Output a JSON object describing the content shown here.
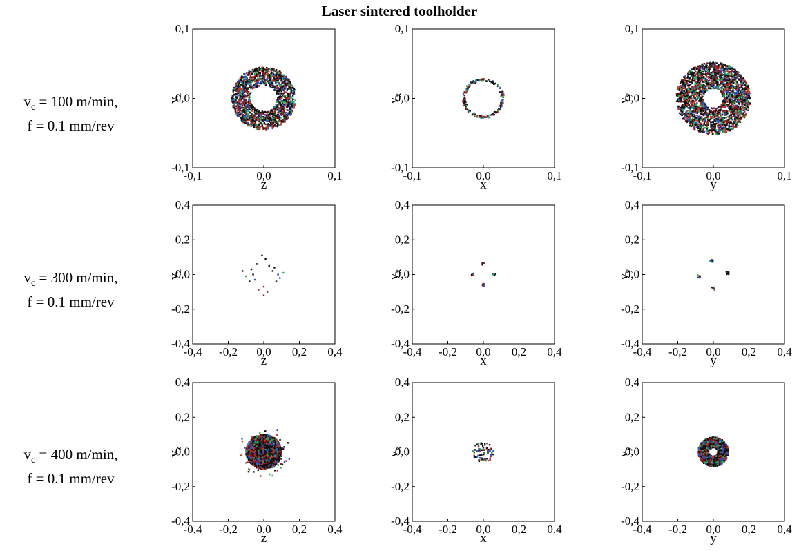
{
  "figure": {
    "title": "Laser sintered toolholder"
  },
  "rows": [
    {
      "vc_sym": "v",
      "vc_sub": "c",
      "vc_text": " = 100 m/min,",
      "feed": "f = 0.1 mm/rev"
    },
    {
      "vc_sym": "v",
      "vc_sub": "c",
      "vc_text": " = 300 m/min,",
      "feed": "f = 0.1 mm/rev"
    },
    {
      "vc_sym": "v",
      "vc_sub": "c",
      "vc_text": " = 400 m/min,",
      "feed": "f = 0.1 mm/rev"
    }
  ],
  "colors": {
    "points": [
      "#111111",
      "#111111",
      "#111111",
      "#c0392b",
      "#27ae60",
      "#2e50c8",
      "#8b1a1a"
    ],
    "frame": "#000000"
  },
  "chart_data": [
    {
      "type": "scatter",
      "row": 0,
      "col": 0,
      "xlabel": "z",
      "ylabel_sym": "v",
      "ylabel_sub": "z",
      "xlim": [
        -0.1,
        0.1
      ],
      "ylim": [
        -0.1,
        0.1
      ],
      "xticks": [
        "-0,1",
        "0,0",
        "0,1"
      ],
      "yticks": [
        "-0,1",
        "0,0",
        "0,1"
      ],
      "distribution": {
        "shape": "ring",
        "center": [
          0.0,
          0.0
        ],
        "r_inner": 0.019,
        "r_outer": 0.045,
        "n": 1600
      }
    },
    {
      "type": "scatter",
      "row": 0,
      "col": 1,
      "xlabel": "x",
      "ylabel_sym": "v",
      "ylabel_sub": "x",
      "xlim": [
        -0.1,
        0.1
      ],
      "ylim": [
        -0.1,
        0.1
      ],
      "xticks": [
        "-0,1",
        "0,0",
        "0,1"
      ],
      "yticks": [
        "-0,1",
        "0,0",
        "0,1"
      ],
      "distribution": {
        "shape": "ring",
        "center": [
          0.0,
          0.0
        ],
        "r_inner": 0.025,
        "r_outer": 0.029,
        "n": 160
      }
    },
    {
      "type": "scatter",
      "row": 0,
      "col": 2,
      "xlabel": "y",
      "ylabel_sym": "v",
      "ylabel_sub": "y",
      "xlim": [
        -0.1,
        0.1
      ],
      "ylim": [
        -0.1,
        0.1
      ],
      "xticks": [
        "-0,1",
        "0,0",
        "0,1"
      ],
      "yticks": [
        "-0,1",
        "0,0",
        "0,1"
      ],
      "distribution": {
        "shape": "ring",
        "center": [
          0.0,
          0.0
        ],
        "r_inner": 0.014,
        "r_outer": 0.052,
        "n": 2400
      }
    },
    {
      "type": "scatter",
      "row": 1,
      "col": 0,
      "xlabel": "z",
      "ylabel_sym": "v",
      "ylabel_sub": "z",
      "xlim": [
        -0.4,
        0.4
      ],
      "ylim": [
        -0.4,
        0.4
      ],
      "xticks": [
        "-0,4",
        "-0,2",
        "0,0",
        "0,2",
        "0,4"
      ],
      "yticks": [
        "-0,4",
        "-0,2",
        "0,0",
        "0,2",
        "0,4"
      ],
      "distribution": {
        "shape": "points",
        "points": [
          [
            -0.01,
            0.11
          ],
          [
            0.01,
            0.09
          ],
          [
            -0.04,
            0.06
          ],
          [
            0.03,
            0.05
          ],
          [
            -0.12,
            0.02
          ],
          [
            -0.1,
            -0.01
          ],
          [
            -0.08,
            -0.04
          ],
          [
            -0.06,
            0.0
          ],
          [
            0.11,
            0.01
          ],
          [
            0.09,
            -0.02
          ],
          [
            0.07,
            -0.04
          ],
          [
            0.05,
            0.02
          ],
          [
            0.0,
            -0.07
          ],
          [
            -0.03,
            -0.09
          ],
          [
            0.02,
            -0.1
          ],
          [
            0.0,
            -0.12
          ],
          [
            -0.05,
            -0.03
          ],
          [
            0.06,
            0.04
          ],
          [
            -0.07,
            0.03
          ],
          [
            0.08,
            0.0
          ]
        ]
      }
    },
    {
      "type": "scatter",
      "row": 1,
      "col": 1,
      "xlabel": "x",
      "ylabel_sym": "v",
      "ylabel_sub": "x",
      "xlim": [
        -0.4,
        0.4
      ],
      "ylim": [
        -0.4,
        0.4
      ],
      "xticks": [
        "-0,4",
        "-0,2",
        "0,0",
        "0,2",
        "0,4"
      ],
      "yticks": [
        "-0,4",
        "-0,2",
        "0,0",
        "0,2",
        "0,4"
      ],
      "distribution": {
        "shape": "clusters",
        "centers": [
          [
            0.0,
            0.06
          ],
          [
            0.0,
            -0.06
          ],
          [
            -0.06,
            0.0
          ],
          [
            0.06,
            0.0
          ]
        ],
        "spread": 0.006,
        "n_each": 8
      }
    },
    {
      "type": "scatter",
      "row": 1,
      "col": 2,
      "xlabel": "y",
      "ylabel_sym": "v",
      "ylabel_sub": "y",
      "xlim": [
        -0.4,
        0.4
      ],
      "ylim": [
        -0.4,
        0.4
      ],
      "xticks": [
        "-0,4",
        "-0,2",
        "0,0",
        "0,2",
        "0,4"
      ],
      "yticks": [
        "-0,4",
        "-0,2",
        "0,0",
        "0,2",
        "0,4"
      ],
      "distribution": {
        "shape": "clusters",
        "centers": [
          [
            -0.01,
            0.08
          ],
          [
            0.0,
            -0.08
          ],
          [
            -0.08,
            -0.01
          ],
          [
            0.08,
            0.01
          ]
        ],
        "spread": 0.008,
        "n_each": 9
      }
    },
    {
      "type": "scatter",
      "row": 2,
      "col": 0,
      "xlabel": "z",
      "ylabel_sym": "v",
      "ylabel_sub": "z",
      "xlim": [
        -0.4,
        0.4
      ],
      "ylim": [
        -0.4,
        0.4
      ],
      "xticks": [
        "-0,4",
        "-0,2",
        "0,0",
        "0,2",
        "0,4"
      ],
      "yticks": [
        "-0,4",
        "-0,2",
        "0,0",
        "0,2",
        "0,4"
      ],
      "distribution": {
        "shape": "disk",
        "center": [
          0.0,
          0.0
        ],
        "r_outer": 0.1,
        "n": 2200,
        "outliers": 40,
        "outlier_r": 0.15
      }
    },
    {
      "type": "scatter",
      "row": 2,
      "col": 1,
      "xlabel": "x",
      "ylabel_sym": "v",
      "ylabel_sub": "x",
      "xlim": [
        -0.4,
        0.4
      ],
      "ylim": [
        -0.4,
        0.4
      ],
      "xticks": [
        "-0,4",
        "-0,2",
        "0,0",
        "0,2",
        "0,4"
      ],
      "yticks": [
        "-0,4",
        "-0,2",
        "0,0",
        "0,2",
        "0,4"
      ],
      "distribution": {
        "shape": "disk",
        "center": [
          0.0,
          0.0
        ],
        "r_outer": 0.06,
        "n": 70,
        "outliers": 0,
        "outlier_r": 0.0
      }
    },
    {
      "type": "scatter",
      "row": 2,
      "col": 2,
      "xlabel": "y",
      "ylabel_sym": "v",
      "ylabel_sub": "y",
      "xlim": [
        -0.4,
        0.4
      ],
      "ylim": [
        -0.4,
        0.4
      ],
      "xticks": [
        "-0,4",
        "-0,2",
        "0,0",
        "0,2",
        "0,4"
      ],
      "yticks": [
        "-0,4",
        "-0,2",
        "0,0",
        "0,2",
        "0,4"
      ],
      "distribution": {
        "shape": "ring",
        "center": [
          0.0,
          0.0
        ],
        "r_inner": 0.025,
        "r_outer": 0.085,
        "n": 1500
      }
    }
  ]
}
